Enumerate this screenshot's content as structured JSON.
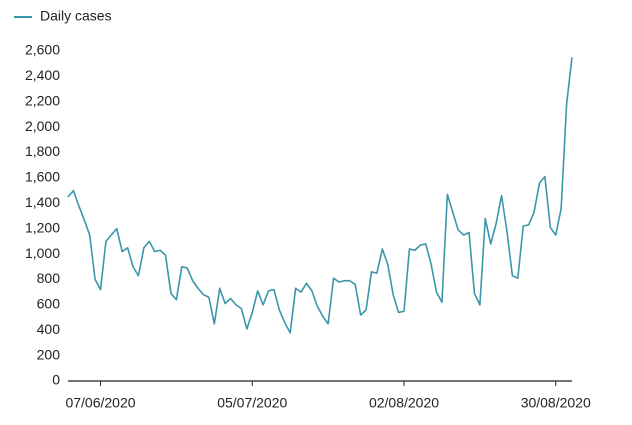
{
  "chart_data": {
    "type": "line",
    "x": [
      "01/06/2020",
      "02/06/2020",
      "03/06/2020",
      "04/06/2020",
      "05/06/2020",
      "06/06/2020",
      "07/06/2020",
      "08/06/2020",
      "09/06/2020",
      "10/06/2020",
      "11/06/2020",
      "12/06/2020",
      "13/06/2020",
      "14/06/2020",
      "15/06/2020",
      "16/06/2020",
      "17/06/2020",
      "18/06/2020",
      "19/06/2020",
      "20/06/2020",
      "21/06/2020",
      "22/06/2020",
      "23/06/2020",
      "24/06/2020",
      "25/06/2020",
      "26/06/2020",
      "27/06/2020",
      "28/06/2020",
      "29/06/2020",
      "30/06/2020",
      "01/07/2020",
      "02/07/2020",
      "03/07/2020",
      "04/07/2020",
      "05/07/2020",
      "06/07/2020",
      "07/07/2020",
      "08/07/2020",
      "09/07/2020",
      "10/07/2020",
      "11/07/2020",
      "12/07/2020",
      "13/07/2020",
      "14/07/2020",
      "15/07/2020",
      "16/07/2020",
      "17/07/2020",
      "18/07/2020",
      "19/07/2020",
      "20/07/2020",
      "21/07/2020",
      "22/07/2020",
      "23/07/2020",
      "24/07/2020",
      "25/07/2020",
      "26/07/2020",
      "27/07/2020",
      "28/07/2020",
      "29/07/2020",
      "30/07/2020",
      "31/07/2020",
      "01/08/2020",
      "02/08/2020",
      "03/08/2020",
      "04/08/2020",
      "05/08/2020",
      "06/08/2020",
      "07/08/2020",
      "08/08/2020",
      "09/08/2020",
      "10/08/2020",
      "11/08/2020",
      "12/08/2020",
      "13/08/2020",
      "14/08/2020",
      "15/08/2020",
      "16/08/2020",
      "17/08/2020",
      "18/08/2020",
      "19/08/2020",
      "20/08/2020",
      "21/08/2020",
      "22/08/2020",
      "23/08/2020",
      "24/08/2020",
      "25/08/2020",
      "26/08/2020",
      "27/08/2020",
      "28/08/2020",
      "29/08/2020",
      "30/08/2020",
      "31/08/2020",
      "01/09/2020",
      "02/09/2020"
    ],
    "series": [
      {
        "name": "Daily cases",
        "color": "#3a97a9",
        "values": [
          1450,
          1500,
          1380,
          1270,
          1150,
          800,
          720,
          1100,
          1150,
          1200,
          1020,
          1050,
          900,
          830,
          1050,
          1100,
          1020,
          1030,
          990,
          690,
          640,
          900,
          890,
          790,
          730,
          680,
          660,
          450,
          730,
          610,
          650,
          600,
          570,
          410,
          540,
          710,
          600,
          710,
          720,
          560,
          460,
          380,
          730,
          700,
          770,
          710,
          590,
          510,
          450,
          810,
          780,
          790,
          790,
          760,
          520,
          560,
          860,
          850,
          1040,
          920,
          680,
          540,
          550,
          1040,
          1030,
          1070,
          1080,
          920,
          700,
          620,
          1470,
          1330,
          1190,
          1150,
          1170,
          690,
          600,
          1280,
          1080,
          1240,
          1460,
          1180,
          830,
          810,
          1220,
          1230,
          1330,
          1560,
          1610,
          1210,
          1150,
          1360,
          2180,
          2550
        ]
      }
    ],
    "xticks": [
      "07/06/2020",
      "05/07/2020",
      "02/08/2020",
      "30/08/2020"
    ],
    "ylim": [
      0,
      2600
    ],
    "yticks": [
      0,
      {
        "value": 200,
        "label": "200"
      },
      {
        "value": 400,
        "label": "400"
      },
      {
        "value": 600,
        "label": "600"
      },
      {
        "value": 800,
        "label": "800"
      },
      {
        "value": 1000,
        "label": "1,000"
      },
      {
        "value": 1200,
        "label": "1,200"
      },
      {
        "value": 1400,
        "label": "1,400"
      },
      {
        "value": 1600,
        "label": "1,600"
      },
      {
        "value": 1800,
        "label": "1,800"
      },
      {
        "value": 2000,
        "label": "2,000"
      },
      {
        "value": 2200,
        "label": "2,200"
      },
      {
        "value": 2400,
        "label": "2,400"
      },
      {
        "value": 2600,
        "label": "2,600"
      }
    ],
    "grid": false,
    "legend": "top-left"
  }
}
